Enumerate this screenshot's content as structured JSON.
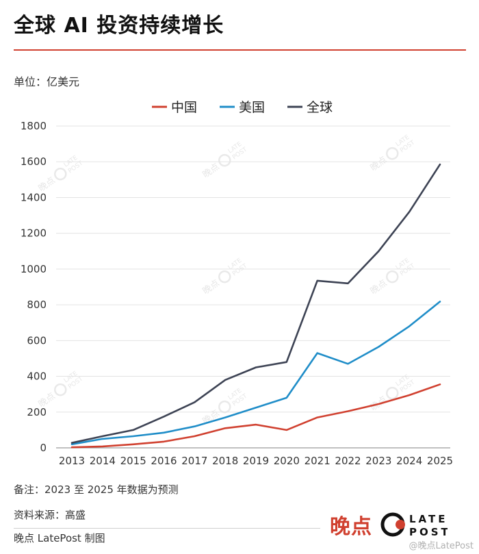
{
  "header": {
    "title": "全球 AI 投资持续增长",
    "unit": "单位：亿美元"
  },
  "colors": {
    "accent": "#d0402f",
    "china": "#d0402f",
    "usa": "#1f8dc8",
    "global": "#3d4354"
  },
  "chart_data": {
    "type": "line",
    "x": [
      "2013",
      "2014",
      "2015",
      "2016",
      "2017",
      "2018",
      "2019",
      "2020",
      "2021",
      "2022",
      "2023",
      "2024",
      "2025"
    ],
    "series": [
      {
        "name": "中国",
        "color": "#d0402f",
        "values": [
          3,
          8,
          20,
          35,
          65,
          110,
          130,
          100,
          170,
          205,
          245,
          295,
          355
        ]
      },
      {
        "name": "美国",
        "color": "#1f8dc8",
        "values": [
          20,
          50,
          65,
          85,
          120,
          170,
          225,
          280,
          530,
          470,
          565,
          680,
          818
        ]
      },
      {
        "name": "全球",
        "color": "#3d4354",
        "values": [
          28,
          65,
          100,
          175,
          255,
          380,
          450,
          480,
          935,
          920,
          1100,
          1320,
          1585
        ]
      }
    ],
    "ylim": [
      0,
      1800
    ],
    "yticks": [
      0,
      200,
      400,
      600,
      800,
      1000,
      1200,
      1400,
      1600,
      1800
    ],
    "grid": true,
    "legend": "top-center"
  },
  "footer": {
    "note": "备注：2023 至 2025 年数据为预测",
    "source": "资料来源：高盛",
    "credit": "晚点 LatePost 制图",
    "brand_cn": "晚点",
    "logo_top": "LATE",
    "logo_bottom": "POST",
    "platform_watermark": "@晚点LatePost"
  },
  "watermark": {
    "text": "晚点",
    "logo_top": "LATE",
    "logo_bottom": "POST"
  }
}
